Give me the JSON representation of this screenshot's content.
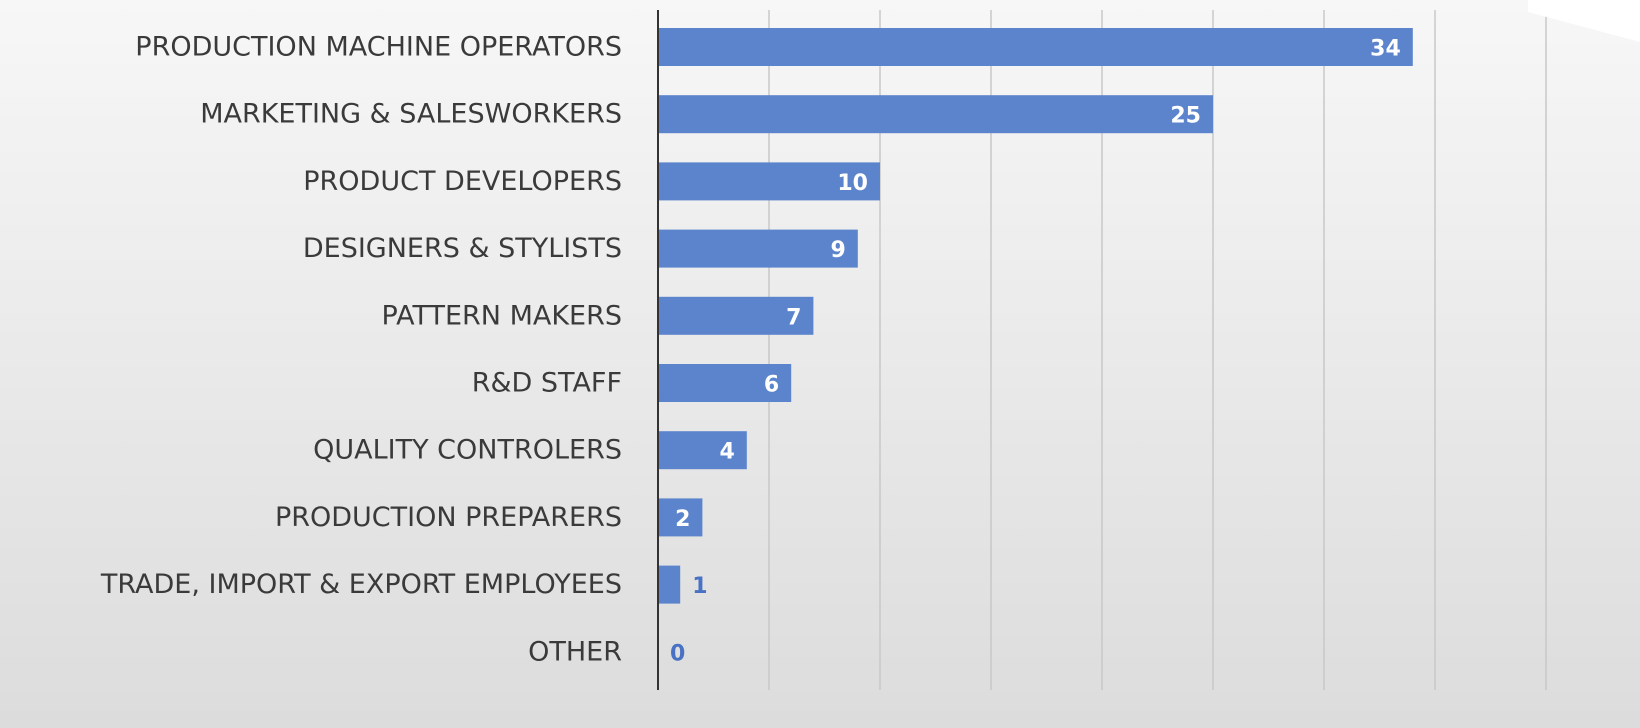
{
  "chart_data": {
    "type": "bar",
    "orientation": "horizontal",
    "categories": [
      "PRODUCTION MACHINE OPERATORS",
      "MARKETING & SALESWORKERS",
      "PRODUCT DEVELOPERS",
      "DESIGNERS & STYLISTS",
      "PATTERN MAKERS",
      "R&D STAFF",
      "QUALITY CONTROLERS",
      "PRODUCTION PREPARERS",
      "TRADE, IMPORT & EXPORT EMPLOYEES",
      "OTHER"
    ],
    "values": [
      34,
      25,
      10,
      9,
      7,
      6,
      4,
      2,
      1,
      0
    ],
    "xlim": [
      0,
      40
    ],
    "grid": true,
    "data_labels": true,
    "legend": "none",
    "title": "",
    "xlabel": "",
    "ylabel": ""
  },
  "colors": {
    "bar": "#5b84cc",
    "label_inside": "#ffffff",
    "label_outside": "#4a72c4",
    "gridline": "#c8c8c8",
    "axis": "#333333",
    "category_text": "#3a3a3a",
    "background_top": "#f7f7f7",
    "background_bottom": "#dcdcdc"
  }
}
